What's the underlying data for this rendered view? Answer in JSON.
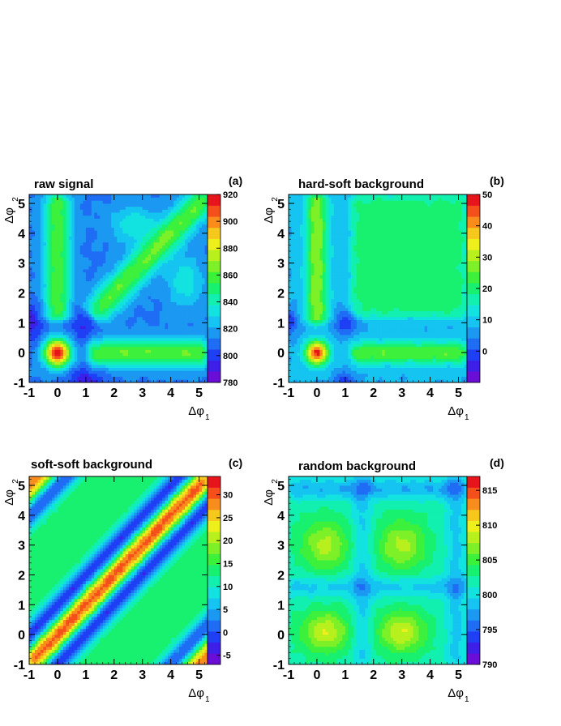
{
  "chart_data": [
    {
      "type": "heatmap",
      "title": "raw signal",
      "tag": "(a)",
      "xlabel": "Δφ",
      "xlabel_sub": "1",
      "ylabel": "Δφ",
      "ylabel_sub": "2",
      "xlim": [
        -1,
        5.3
      ],
      "ylim": [
        -1,
        5.3
      ],
      "xticks": [
        "-1",
        "0",
        "1",
        "2",
        "3",
        "4",
        "5"
      ],
      "yticks": [
        "-1",
        "0",
        "1",
        "2",
        "3",
        "4",
        "5"
      ],
      "zlim": [
        780,
        920
      ],
      "colorbar_ticks": [
        "780",
        "800",
        "820",
        "840",
        "860",
        "880",
        "900",
        "920"
      ],
      "base": 812,
      "features": [
        {
          "shape": "blob",
          "x": 0,
          "y": 0,
          "amp": 110,
          "sx": 0.33,
          "sy": 0.33
        },
        {
          "shape": "hband",
          "y": 0,
          "x0": 1.1,
          "x1": 5.3,
          "amp": 50,
          "w": 0.33
        },
        {
          "shape": "vband",
          "x": 0,
          "y0": 1.1,
          "y1": 5.3,
          "amp": 48,
          "w": 0.33
        },
        {
          "shape": "diag",
          "offset": 0,
          "x0": 1.2,
          "x1": 5.3,
          "amp": 50,
          "w": 0.35
        },
        {
          "shape": "blob",
          "x": 2.7,
          "y": 4.3,
          "amp": 24,
          "sx": 0.6,
          "sy": 0.45
        },
        {
          "shape": "blob",
          "x": 4.5,
          "y": 2.4,
          "amp": 24,
          "sx": 0.45,
          "sy": 0.6
        },
        {
          "shape": "blob",
          "x": 1.0,
          "y": 1.0,
          "amp": -18,
          "sx": 0.45,
          "sy": 0.45
        },
        {
          "shape": "blob",
          "x": -1.0,
          "y": 1.0,
          "amp": -22,
          "sx": 0.35,
          "sy": 0.45
        },
        {
          "shape": "blob",
          "x": 1.0,
          "y": -1.0,
          "amp": -22,
          "sx": 0.45,
          "sy": 0.35
        }
      ]
    },
    {
      "type": "heatmap",
      "title": "hard-soft background",
      "tag": "(b)",
      "xlabel": "Δφ",
      "xlabel_sub": "1",
      "ylabel": "Δφ",
      "ylabel_sub": "2",
      "xlim": [
        -1,
        5.3
      ],
      "ylim": [
        -1,
        5.3
      ],
      "xticks": [
        "-1",
        "0",
        "1",
        "2",
        "3",
        "4",
        "5"
      ],
      "yticks": [
        "-1",
        "0",
        "1",
        "2",
        "3",
        "4",
        "5"
      ],
      "zlim": [
        -10,
        50
      ],
      "colorbar_ticks": [
        "0",
        "10",
        "20",
        "30",
        "40",
        "50"
      ],
      "base": 8,
      "features": [
        {
          "shape": "blob",
          "x": 0,
          "y": 0,
          "amp": 40,
          "sx": 0.28,
          "sy": 0.28
        },
        {
          "shape": "hband",
          "y": 0,
          "x0": 1.2,
          "x1": 5.3,
          "amp": 17,
          "w": 0.26
        },
        {
          "shape": "vband",
          "x": 0,
          "y0": 1.0,
          "y1": 5.3,
          "amp": 20,
          "w": 0.28
        },
        {
          "shape": "rect",
          "x0": 1.2,
          "x1": 5.3,
          "y0": 1.2,
          "y1": 5.3,
          "amp": 11,
          "w": 0.12
        },
        {
          "shape": "blob",
          "x": 1.0,
          "y": 1.0,
          "amp": -10,
          "sx": 0.3,
          "sy": 0.3
        },
        {
          "shape": "blob",
          "x": -1.0,
          "y": 1.0,
          "amp": -10,
          "sx": 0.25,
          "sy": 0.3
        },
        {
          "shape": "blob",
          "x": 1.0,
          "y": -1.0,
          "amp": -10,
          "sx": 0.3,
          "sy": 0.25
        }
      ]
    },
    {
      "type": "heatmap",
      "title": "soft-soft background",
      "tag": "(c)",
      "xlabel": "Δφ",
      "xlabel_sub": "1",
      "ylabel": "Δφ",
      "ylabel_sub": "2",
      "xlim": [
        -1,
        5.3
      ],
      "ylim": [
        -1,
        5.3
      ],
      "xticks": [
        "-1",
        "0",
        "1",
        "2",
        "3",
        "4",
        "5"
      ],
      "yticks": [
        "-1",
        "0",
        "1",
        "2",
        "3",
        "4",
        "5"
      ],
      "zlim": [
        -7,
        34
      ],
      "colorbar_ticks": [
        "-5",
        "0",
        "5",
        "10",
        "15",
        "20",
        "25",
        "30"
      ],
      "base": 14,
      "features": [
        {
          "shape": "diag",
          "offset": 0,
          "x0": -1,
          "x1": 5.3,
          "amp": 17,
          "w": 0.3
        },
        {
          "shape": "diag",
          "offset": 0.95,
          "x0": -1,
          "x1": 5.3,
          "amp": -17,
          "w": 0.26
        },
        {
          "shape": "diag",
          "offset": -0.95,
          "x0": -1,
          "x1": 5.3,
          "amp": -17,
          "w": 0.26
        },
        {
          "shape": "diag",
          "offset": 6.0,
          "x0": -1,
          "x1": 5.3,
          "amp": 15,
          "w": 0.3
        },
        {
          "shape": "diag",
          "offset": -6.0,
          "x0": -1,
          "x1": 5.3,
          "amp": 15,
          "w": 0.3
        },
        {
          "shape": "diag",
          "offset": 5.0,
          "x0": -1,
          "x1": 5.3,
          "amp": -14,
          "w": 0.26
        },
        {
          "shape": "diag",
          "offset": -5.0,
          "x0": -1,
          "x1": 5.3,
          "amp": -14,
          "w": 0.26
        }
      ]
    },
    {
      "type": "heatmap",
      "title": "random background",
      "tag": "(d)",
      "xlabel": "Δφ",
      "xlabel_sub": "1",
      "ylabel": "Δφ",
      "ylabel_sub": "2",
      "xlim": [
        -1,
        5.3
      ],
      "ylim": [
        -1,
        5.3
      ],
      "xticks": [
        "-1",
        "0",
        "1",
        "2",
        "3",
        "4",
        "5"
      ],
      "yticks": [
        "-1",
        "0",
        "1",
        "2",
        "3",
        "4",
        "5"
      ],
      "zlim": [
        790,
        817
      ],
      "colorbar_ticks": [
        "790",
        "795",
        "800",
        "805",
        "810",
        "815"
      ],
      "base": 802,
      "features": [
        {
          "shape": "blob",
          "x": 0.3,
          "y": 0.1,
          "amp": 7,
          "sx": 0.6,
          "sy": 0.5
        },
        {
          "shape": "blob",
          "x": 3.0,
          "y": 0.1,
          "amp": 7,
          "sx": 0.6,
          "sy": 0.5
        },
        {
          "shape": "blob",
          "x": 0.3,
          "y": 3.0,
          "amp": 6,
          "sx": 0.6,
          "sy": 0.6
        },
        {
          "shape": "blob",
          "x": 3.0,
          "y": 3.0,
          "amp": 6,
          "sx": 0.6,
          "sy": 0.6
        },
        {
          "shape": "hband",
          "y": 1.6,
          "x0": -1,
          "x1": 5.3,
          "amp": -3,
          "w": 0.25
        },
        {
          "shape": "vband",
          "x": 1.6,
          "y0": -1,
          "y1": 5.3,
          "amp": -3,
          "w": 0.25
        },
        {
          "shape": "hband",
          "y": 4.9,
          "x0": -1,
          "x1": 5.3,
          "amp": -4,
          "w": 0.25
        },
        {
          "shape": "vband",
          "x": 4.9,
          "y0": -1,
          "y1": 5.3,
          "amp": -3,
          "w": 0.25
        }
      ]
    }
  ]
}
